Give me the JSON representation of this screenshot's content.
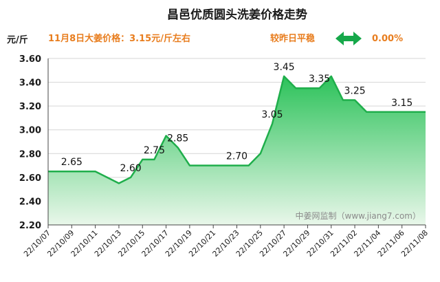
{
  "header": {
    "title": "昌邑优质圆头洗姜价格走势",
    "price_info": "11月8日大姜价格：3.15元/斤左右",
    "compare_text": "较昨日平稳",
    "change_value": "0.00%",
    "arrow_icon": "double-arrow-icon"
  },
  "watermark": "中姜网监制（www.jiang7.com）",
  "colors": {
    "line": "#1fae4b",
    "fill_top": "#2cc25a",
    "fill_bottom": "#e9f7ea",
    "accent_orange": "#e87d1e",
    "arrow": "#16a84a"
  },
  "chart_data": {
    "type": "area",
    "ylabel": "元/斤",
    "ylim": [
      2.2,
      3.6
    ],
    "yticks": [
      "2.20",
      "2.40",
      "2.60",
      "2.80",
      "3.00",
      "3.20",
      "3.40",
      "3.60"
    ],
    "x_tick_labels": [
      "22/10/07",
      "22/10/09",
      "22/10/11",
      "22/10/13",
      "22/10/15",
      "22/10/17",
      "22/10/19",
      "22/10/21",
      "22/10/23",
      "22/10/25",
      "22/10/27",
      "22/10/29",
      "22/10/31",
      "22/11/02",
      "22/11/04",
      "22/11/06",
      "22/11/08"
    ],
    "dates": [
      "22/10/07",
      "22/10/08",
      "22/10/09",
      "22/10/10",
      "22/10/11",
      "22/10/12",
      "22/10/13",
      "22/10/14",
      "22/10/15",
      "22/10/16",
      "22/10/17",
      "22/10/18",
      "22/10/19",
      "22/10/20",
      "22/10/21",
      "22/10/22",
      "22/10/23",
      "22/10/24",
      "22/10/25",
      "22/10/26",
      "22/10/27",
      "22/10/28",
      "22/10/29",
      "22/10/30",
      "22/10/31",
      "22/11/01",
      "22/11/02",
      "22/11/03",
      "22/11/04",
      "22/11/05",
      "22/11/06",
      "22/11/07",
      "22/11/08"
    ],
    "values": [
      2.65,
      2.65,
      2.65,
      2.65,
      2.65,
      2.6,
      2.55,
      2.6,
      2.75,
      2.75,
      2.95,
      2.85,
      2.7,
      2.7,
      2.7,
      2.7,
      2.7,
      2.7,
      2.8,
      3.05,
      3.45,
      3.35,
      3.35,
      3.35,
      3.45,
      3.25,
      3.25,
      3.15,
      3.15,
      3.15,
      3.15,
      3.15,
      3.15
    ],
    "data_labels": [
      {
        "date": "22/10/09",
        "text": "2.65"
      },
      {
        "date": "22/10/14",
        "text": "2.60"
      },
      {
        "date": "22/10/16",
        "text": "2.75"
      },
      {
        "date": "22/10/18",
        "text": "2.85"
      },
      {
        "date": "22/10/23",
        "text": "2.70"
      },
      {
        "date": "22/10/26",
        "text": "3.05"
      },
      {
        "date": "22/10/27",
        "text": "3.45"
      },
      {
        "date": "22/10/30",
        "text": "3.35"
      },
      {
        "date": "22/11/02",
        "text": "3.25"
      },
      {
        "date": "22/11/06",
        "text": "3.15"
      }
    ],
    "grid": true
  }
}
